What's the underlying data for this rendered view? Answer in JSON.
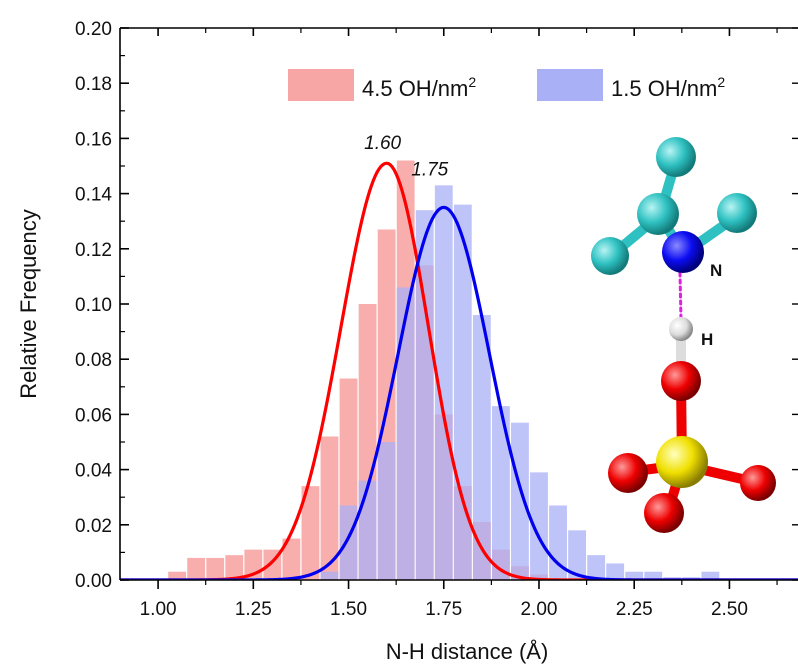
{
  "chart_data": {
    "type": "bar",
    "xlabel": "N-H distance (Å)",
    "ylabel": "Relative Frequency",
    "xlim": [
      0.9,
      2.68
    ],
    "ylim": [
      0,
      0.2
    ],
    "x_ticks": [
      1.0,
      1.25,
      1.5,
      1.75,
      2.0,
      2.25,
      2.5
    ],
    "x_tick_labels": [
      "1.00",
      "1.25",
      "1.50",
      "1.75",
      "2.00",
      "2.25",
      "2.50"
    ],
    "y_ticks": [
      0,
      0.02,
      0.04,
      0.06,
      0.08,
      0.1,
      0.12,
      0.14,
      0.16,
      0.18,
      0.2
    ],
    "y_tick_labels": [
      "0.00",
      "0.02",
      "0.04",
      "0.06",
      "0.08",
      "0.10",
      "0.12",
      "0.14",
      "0.16",
      "0.18",
      "0.20"
    ],
    "bin_width": 0.05,
    "legend_position": "top-right",
    "series": [
      {
        "name": "4.5 OH/nm",
        "name_superscript": "2",
        "color": "#ff0000",
        "bar_color": "#f8a5a5",
        "bin_centers": [
          1.05,
          1.1,
          1.15,
          1.2,
          1.25,
          1.3,
          1.35,
          1.4,
          1.45,
          1.5,
          1.55,
          1.6,
          1.65,
          1.7,
          1.75,
          1.8,
          1.85,
          1.9,
          1.95,
          2.0
        ],
        "values": [
          0.003,
          0.008,
          0.008,
          0.009,
          0.011,
          0.011,
          0.015,
          0.034,
          0.052,
          0.073,
          0.1,
          0.127,
          0.152,
          0.114,
          0.06,
          0.034,
          0.021,
          0.011,
          0.005,
          0.002
        ],
        "fit_peak": 1.6,
        "fit_peak_label": "1.60",
        "fit_amplitude": 0.151,
        "fit_sigma_left": 0.12,
        "fit_sigma_right": 0.11
      },
      {
        "name": "1.5 OH/nm",
        "name_superscript": "2",
        "color": "#0000ee",
        "bar_color": "#aab0f5",
        "bin_centers": [
          1.45,
          1.5,
          1.55,
          1.6,
          1.65,
          1.7,
          1.75,
          1.8,
          1.85,
          1.9,
          1.95,
          2.0,
          2.05,
          2.1,
          2.15,
          2.2,
          2.25,
          2.3,
          2.35,
          2.4,
          2.45
        ],
        "values": [
          0.003,
          0.027,
          0.036,
          0.05,
          0.106,
          0.134,
          0.143,
          0.136,
          0.096,
          0.063,
          0.057,
          0.039,
          0.027,
          0.018,
          0.009,
          0.006,
          0.003,
          0.003,
          0.001,
          0.001,
          0.003
        ],
        "fit_peak": 1.75,
        "fit_peak_label": "1.75",
        "fit_amplitude": 0.135,
        "fit_sigma_left": 0.12,
        "fit_sigma_right": 0.12
      }
    ]
  },
  "inset": {
    "label_n": "N",
    "label_h": "H",
    "colors": {
      "carbon": "#2fc1c1",
      "nitrogen": "#0c0cf2",
      "hydrogen": "#e2e2e2",
      "oxygen": "#ee0000",
      "silicon": "#f0e000",
      "hbond": "#e020e0"
    }
  }
}
